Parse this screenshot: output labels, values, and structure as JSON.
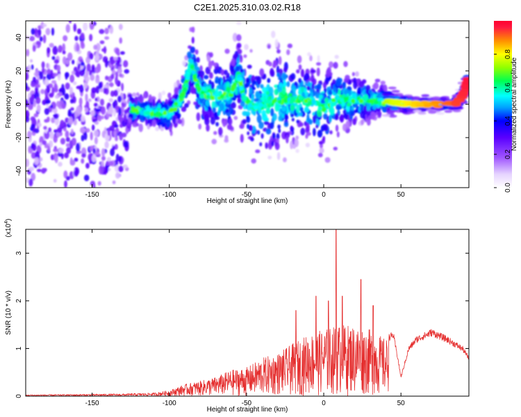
{
  "title": "C2E1.2025.310.03.02.R18",
  "chart_data": [
    {
      "type": "heatmap",
      "name": "spectrogram",
      "xlabel": "Height of straight line (km)",
      "ylabel": "Frequency (Hz)",
      "xlim": [
        -193,
        94
      ],
      "ylim": [
        -50,
        50
      ],
      "xticks": [
        -150,
        -100,
        -50,
        0,
        50
      ],
      "yticks": [
        -40,
        -20,
        0,
        20,
        40
      ],
      "colorbar": {
        "label": "Normalized spectral amplitude",
        "range": [
          0,
          1
        ],
        "ticks": [
          0.0,
          0.2,
          0.4,
          0.6,
          0.8
        ],
        "colormap": "white-purple-blue-cyan-green-yellow-orange-red"
      },
      "ridge": [
        {
          "x": -190,
          "center": 0,
          "spread": 48
        },
        {
          "x": -130,
          "center": 0,
          "spread": 40
        },
        {
          "x": -125,
          "center": -3,
          "spread": 6
        },
        {
          "x": -110,
          "center": -5,
          "spread": 6
        },
        {
          "x": -100,
          "center": -6,
          "spread": 7
        },
        {
          "x": -93,
          "center": 2,
          "spread": 8
        },
        {
          "x": -89,
          "center": 12,
          "spread": 12
        },
        {
          "x": -86,
          "center": 25,
          "spread": 14
        },
        {
          "x": -80,
          "center": 6,
          "spread": 14
        },
        {
          "x": -70,
          "center": 4,
          "spread": 16
        },
        {
          "x": -60,
          "center": 6,
          "spread": 16
        },
        {
          "x": -55,
          "center": 18,
          "spread": 16
        },
        {
          "x": -52,
          "center": 5,
          "spread": 18
        },
        {
          "x": -45,
          "center": -2,
          "spread": 20
        },
        {
          "x": -30,
          "center": 2,
          "spread": 22
        },
        {
          "x": -15,
          "center": 3,
          "spread": 16
        },
        {
          "x": 0,
          "center": -2,
          "spread": 18
        },
        {
          "x": 10,
          "center": 3,
          "spread": 14
        },
        {
          "x": 30,
          "center": 2,
          "spread": 8
        },
        {
          "x": 45,
          "center": 1,
          "spread": 5
        },
        {
          "x": 60,
          "center": 0,
          "spread": 3
        },
        {
          "x": 85,
          "center": 0,
          "spread": 3
        },
        {
          "x": 90,
          "center": 5,
          "spread": 5
        },
        {
          "x": 93,
          "center": 14,
          "spread": 6
        }
      ]
    },
    {
      "type": "line",
      "name": "snr",
      "xlabel": "Height of straight line (km)",
      "ylabel": "SNR (10 * v/v)",
      "scale_label": "(x10",
      "scale_exponent": "4",
      "xlim": [
        -193,
        94
      ],
      "ylim": [
        0,
        3.5
      ],
      "xticks": [
        -150,
        -100,
        -50,
        0,
        50
      ],
      "yticks": [
        0,
        1,
        2,
        3
      ],
      "color": "#e53030",
      "envelope": [
        {
          "x": -193,
          "y": 0.03
        },
        {
          "x": -130,
          "y": 0.05
        },
        {
          "x": -110,
          "y": 0.07
        },
        {
          "x": -100,
          "y": 0.12
        },
        {
          "x": -90,
          "y": 0.25
        },
        {
          "x": -80,
          "y": 0.32
        },
        {
          "x": -70,
          "y": 0.4
        },
        {
          "x": -60,
          "y": 0.55
        },
        {
          "x": -50,
          "y": 0.6
        },
        {
          "x": -40,
          "y": 0.8
        },
        {
          "x": -30,
          "y": 0.9
        },
        {
          "x": -20,
          "y": 1.1
        },
        {
          "x": -10,
          "y": 1.3
        },
        {
          "x": 0,
          "y": 1.4
        },
        {
          "x": 10,
          "y": 1.5
        },
        {
          "x": 20,
          "y": 1.5
        },
        {
          "x": 30,
          "y": 1.4
        },
        {
          "x": 35,
          "y": 1.3
        },
        {
          "x": 40,
          "y": 1.2
        },
        {
          "x": 45,
          "y": 1.3
        },
        {
          "x": 48,
          "y": 0.8
        },
        {
          "x": 50,
          "y": 0.4
        },
        {
          "x": 55,
          "y": 1.0
        },
        {
          "x": 60,
          "y": 1.2
        },
        {
          "x": 70,
          "y": 1.35
        },
        {
          "x": 80,
          "y": 1.2
        },
        {
          "x": 90,
          "y": 1.0
        },
        {
          "x": 94,
          "y": 0.8
        }
      ],
      "noise_start_x": 42,
      "peaks": [
        {
          "x": -18,
          "y": 1.8
        },
        {
          "x": -5,
          "y": 2.1
        },
        {
          "x": 3,
          "y": 2.0
        },
        {
          "x": 8,
          "y": 3.55
        },
        {
          "x": 12,
          "y": 2.1
        },
        {
          "x": 24,
          "y": 2.45
        },
        {
          "x": 32,
          "y": 1.9
        }
      ]
    }
  ]
}
